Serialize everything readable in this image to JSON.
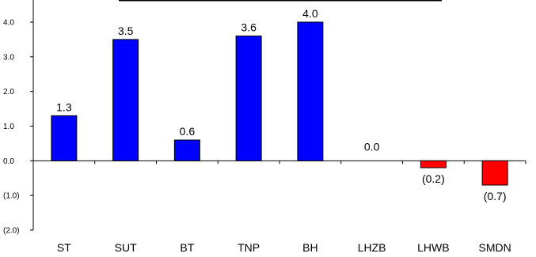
{
  "chart_data": {
    "type": "bar",
    "categories": [
      "ST",
      "SUT",
      "BT",
      "TNP",
      "BH",
      "LHZB",
      "LHWB",
      "SMDN"
    ],
    "values": [
      1.3,
      3.5,
      0.6,
      3.6,
      4.0,
      0.0,
      -0.2,
      -0.7
    ],
    "data_labels": [
      "1.3",
      "3.5",
      "0.6",
      "3.6",
      "4.0",
      "0.0",
      "(0.2)",
      "(0.7)"
    ],
    "ylim": [
      -2.0,
      4.0
    ],
    "y_ticks": [
      4.0,
      3.0,
      2.0,
      1.0,
      0.0,
      -1.0,
      -2.0
    ],
    "y_tick_labels": [
      "4.0",
      "3.0",
      "2.0",
      "1.0",
      "0.0",
      "(1.0)",
      "(2.0)"
    ],
    "grid": false,
    "legend": "none",
    "colors": {
      "positive": "#0000ff",
      "negative": "#ff0000",
      "outline": "#000000"
    }
  }
}
